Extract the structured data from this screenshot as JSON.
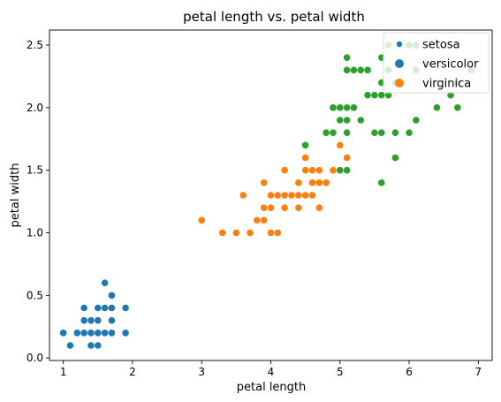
{
  "chart_data": {
    "type": "scatter",
    "title": "petal length vs. petal width",
    "xlabel": "petal length",
    "ylabel": "petal width",
    "xlim": [
      0.8,
      7.2
    ],
    "ylim": [
      -0.02,
      2.62
    ],
    "xticks": [
      1,
      2,
      3,
      4,
      5,
      6,
      7
    ],
    "yticks": [
      0.0,
      0.5,
      1.0,
      1.5,
      2.0,
      2.5
    ],
    "xtick_labels": [
      "1",
      "2",
      "3",
      "4",
      "5",
      "6",
      "7"
    ],
    "ytick_labels": [
      "0.0",
      "0.5",
      "1.0",
      "1.5",
      "2.0",
      "2.5"
    ],
    "grid": false,
    "legend_position": "top-right",
    "series": [
      {
        "name": "setosa",
        "color": "#1f77b4",
        "points": [
          [
            1.0,
            0.2
          ],
          [
            1.1,
            0.1
          ],
          [
            1.2,
            0.2
          ],
          [
            1.3,
            0.2
          ],
          [
            1.3,
            0.3
          ],
          [
            1.3,
            0.4
          ],
          [
            1.4,
            0.1
          ],
          [
            1.4,
            0.2
          ],
          [
            1.4,
            0.3
          ],
          [
            1.5,
            0.1
          ],
          [
            1.5,
            0.2
          ],
          [
            1.5,
            0.3
          ],
          [
            1.5,
            0.4
          ],
          [
            1.6,
            0.2
          ],
          [
            1.6,
            0.4
          ],
          [
            1.6,
            0.6
          ],
          [
            1.7,
            0.2
          ],
          [
            1.7,
            0.3
          ],
          [
            1.7,
            0.4
          ],
          [
            1.7,
            0.5
          ],
          [
            1.9,
            0.2
          ],
          [
            1.9,
            0.4
          ]
        ]
      },
      {
        "name": "versicolor",
        "color": "#ff7f0e",
        "points": [
          [
            3.0,
            1.1
          ],
          [
            3.3,
            1.0
          ],
          [
            3.5,
            1.0
          ],
          [
            3.6,
            1.3
          ],
          [
            3.7,
            1.0
          ],
          [
            3.8,
            1.1
          ],
          [
            3.9,
            1.1
          ],
          [
            3.9,
            1.2
          ],
          [
            3.9,
            1.4
          ],
          [
            4.0,
            1.0
          ],
          [
            4.0,
            1.2
          ],
          [
            4.0,
            1.3
          ],
          [
            4.1,
            1.0
          ],
          [
            4.1,
            1.3
          ],
          [
            4.2,
            1.2
          ],
          [
            4.2,
            1.3
          ],
          [
            4.2,
            1.5
          ],
          [
            4.3,
            1.3
          ],
          [
            4.4,
            1.2
          ],
          [
            4.4,
            1.3
          ],
          [
            4.4,
            1.4
          ],
          [
            4.5,
            1.3
          ],
          [
            4.5,
            1.5
          ],
          [
            4.5,
            1.6
          ],
          [
            4.6,
            1.3
          ],
          [
            4.6,
            1.4
          ],
          [
            4.6,
            1.5
          ],
          [
            4.7,
            1.2
          ],
          [
            4.7,
            1.4
          ],
          [
            4.7,
            1.5
          ],
          [
            4.8,
            1.4
          ],
          [
            4.8,
            1.8
          ],
          [
            4.9,
            1.5
          ],
          [
            5.0,
            1.7
          ],
          [
            5.1,
            1.6
          ]
        ]
      },
      {
        "name": "virginica",
        "color": "#2ca02c",
        "points": [
          [
            4.5,
            1.7
          ],
          [
            4.8,
            1.8
          ],
          [
            4.9,
            1.8
          ],
          [
            4.9,
            2.0
          ],
          [
            5.0,
            1.5
          ],
          [
            5.0,
            1.9
          ],
          [
            5.0,
            2.0
          ],
          [
            5.1,
            1.5
          ],
          [
            5.1,
            1.8
          ],
          [
            5.1,
            1.9
          ],
          [
            5.1,
            2.0
          ],
          [
            5.1,
            2.3
          ],
          [
            5.1,
            2.4
          ],
          [
            5.2,
            2.0
          ],
          [
            5.2,
            2.3
          ],
          [
            5.3,
            1.9
          ],
          [
            5.3,
            2.3
          ],
          [
            5.4,
            2.1
          ],
          [
            5.4,
            2.3
          ],
          [
            5.5,
            1.8
          ],
          [
            5.5,
            2.1
          ],
          [
            5.6,
            1.4
          ],
          [
            5.6,
            1.8
          ],
          [
            5.6,
            2.1
          ],
          [
            5.6,
            2.2
          ],
          [
            5.6,
            2.4
          ],
          [
            5.7,
            2.1
          ],
          [
            5.7,
            2.3
          ],
          [
            5.7,
            2.5
          ],
          [
            5.8,
            1.6
          ],
          [
            5.8,
            1.8
          ],
          [
            5.8,
            2.2
          ],
          [
            6.0,
            1.8
          ],
          [
            6.0,
            2.5
          ],
          [
            6.1,
            1.9
          ],
          [
            6.1,
            2.3
          ],
          [
            6.1,
            2.5
          ],
          [
            6.4,
            2.0
          ],
          [
            6.6,
            2.1
          ],
          [
            6.7,
            2.0
          ],
          [
            6.7,
            2.2
          ],
          [
            6.9,
            2.3
          ]
        ]
      }
    ]
  }
}
